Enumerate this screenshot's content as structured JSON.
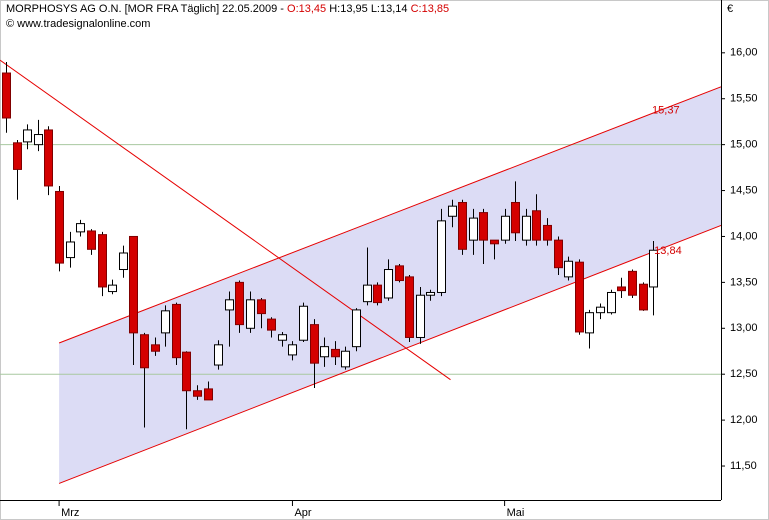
{
  "chart_data": {
    "type": "candlestick",
    "title": "MORPHOSYS AG O.N. [MOR FRA  Täglich] 22.05.2009 - ",
    "title_values": [
      "O:13,45",
      "H:13,95",
      "L:13,14",
      "C:13,85"
    ],
    "subtitle": "© www.tradesignalonline.com",
    "y_unit": "€",
    "up_color": "#ffffff",
    "down_color": "#d40000",
    "open": [
      15.78,
      15.02,
      15.03,
      15.0,
      15.16,
      14.49,
      13.77,
      14.05,
      14.06,
      14.02,
      13.4,
      13.64,
      14.0,
      12.93,
      12.82,
      12.95,
      13.26,
      12.74,
      12.32,
      12.34,
      12.6,
      13.2,
      13.5,
      13.0,
      13.31,
      13.1,
      12.87,
      12.71,
      12.87,
      13.04,
      12.69,
      12.77,
      12.58,
      12.8,
      13.29,
      13.47,
      13.33,
      13.68,
      13.56,
      12.9,
      13.36,
      13.39,
      14.22,
      14.37,
      13.96,
      14.26,
      13.96,
      13.96,
      14.37,
      13.96,
      14.28,
      14.12,
      13.96,
      13.56,
      13.72,
      12.95,
      13.17,
      13.17,
      13.45,
      13.62,
      13.48,
      13.45
    ],
    "high": [
      15.9,
      15.05,
      15.22,
      15.27,
      15.2,
      14.55,
      14.05,
      14.18,
      14.08,
      14.05,
      13.53,
      13.9,
      14.0,
      12.95,
      12.9,
      13.25,
      13.28,
      12.75,
      12.38,
      12.42,
      12.87,
      13.4,
      13.52,
      13.4,
      13.33,
      13.12,
      12.96,
      12.86,
      13.28,
      13.1,
      12.9,
      12.86,
      12.8,
      13.22,
      13.88,
      13.5,
      13.75,
      13.7,
      13.58,
      13.45,
      13.42,
      14.3,
      14.4,
      14.4,
      14.3,
      14.3,
      13.96,
      14.3,
      14.6,
      14.3,
      14.46,
      14.2,
      14.0,
      13.78,
      13.75,
      13.2,
      13.27,
      13.42,
      13.55,
      13.64,
      13.5,
      13.95
    ],
    "low": [
      15.13,
      14.4,
      14.95,
      14.93,
      14.45,
      13.62,
      13.66,
      14.0,
      13.8,
      13.35,
      13.37,
      13.55,
      12.6,
      11.92,
      12.7,
      12.8,
      12.6,
      11.9,
      12.22,
      12.22,
      12.55,
      12.8,
      12.95,
      12.95,
      13.0,
      12.9,
      12.8,
      12.65,
      12.85,
      12.35,
      12.58,
      12.6,
      12.55,
      12.75,
      13.25,
      13.25,
      13.3,
      13.5,
      12.85,
      12.83,
      13.3,
      13.35,
      14.1,
      13.8,
      13.8,
      13.7,
      13.75,
      13.92,
      13.95,
      13.9,
      13.9,
      13.9,
      13.58,
      13.52,
      12.93,
      12.78,
      13.1,
      13.15,
      13.33,
      13.33,
      13.19,
      13.14
    ],
    "close": [
      15.29,
      14.73,
      15.16,
      15.11,
      14.55,
      13.71,
      13.94,
      14.14,
      13.86,
      13.45,
      13.47,
      13.82,
      12.95,
      12.57,
      12.75,
      13.19,
      12.68,
      12.32,
      12.26,
      12.22,
      12.82,
      13.31,
      13.04,
      13.31,
      13.16,
      12.98,
      12.93,
      12.82,
      13.24,
      12.62,
      12.8,
      12.69,
      12.75,
      13.2,
      13.47,
      13.28,
      13.64,
      13.52,
      12.9,
      13.36,
      13.39,
      14.17,
      14.33,
      13.86,
      14.2,
      13.96,
      13.92,
      14.22,
      14.04,
      14.22,
      13.96,
      13.96,
      13.66,
      13.73,
      12.96,
      13.17,
      13.23,
      13.39,
      13.41,
      13.36,
      13.2,
      13.85
    ],
    "xlim": [
      -0.57,
      67.4
    ],
    "xticks": [
      {
        "value": 5,
        "label": "Mrz"
      },
      {
        "value": 27,
        "label": "Apr"
      },
      {
        "value": 47,
        "label": "Mai"
      }
    ],
    "ylim": [
      11.13,
      16.39
    ],
    "yticks": [
      {
        "value": 11.5,
        "label": "11,50"
      },
      {
        "value": 12,
        "label": "12,00"
      },
      {
        "value": 12.5,
        "label": "12,50"
      },
      {
        "value": 13,
        "label": "13,00"
      },
      {
        "value": 13.5,
        "label": "13,50"
      },
      {
        "value": 14,
        "label": "14,00"
      },
      {
        "value": 14.5,
        "label": "14,50"
      },
      {
        "value": 15,
        "label": "15,00"
      },
      {
        "value": 15.5,
        "label": "15,50"
      },
      {
        "value": 16,
        "label": "16,00"
      }
    ],
    "grid_levels": [
      15,
      12.5
    ],
    "channel": {
      "color": "#e60000",
      "fill": "#dcdcf5",
      "x": [
        5,
        67.4
      ],
      "upper": [
        12.84,
        15.63
      ],
      "lower": [
        11.31,
        14.12
      ]
    },
    "trendline": {
      "color": "#e60000",
      "x": [
        -0.57,
        41.9
      ],
      "y": [
        15.92,
        12.44
      ]
    },
    "annotations": [
      {
        "text": "15,37",
        "x": 60.9,
        "y": 15.37
      },
      {
        "text": "13,84",
        "x": 61.1,
        "y": 13.84
      }
    ]
  }
}
